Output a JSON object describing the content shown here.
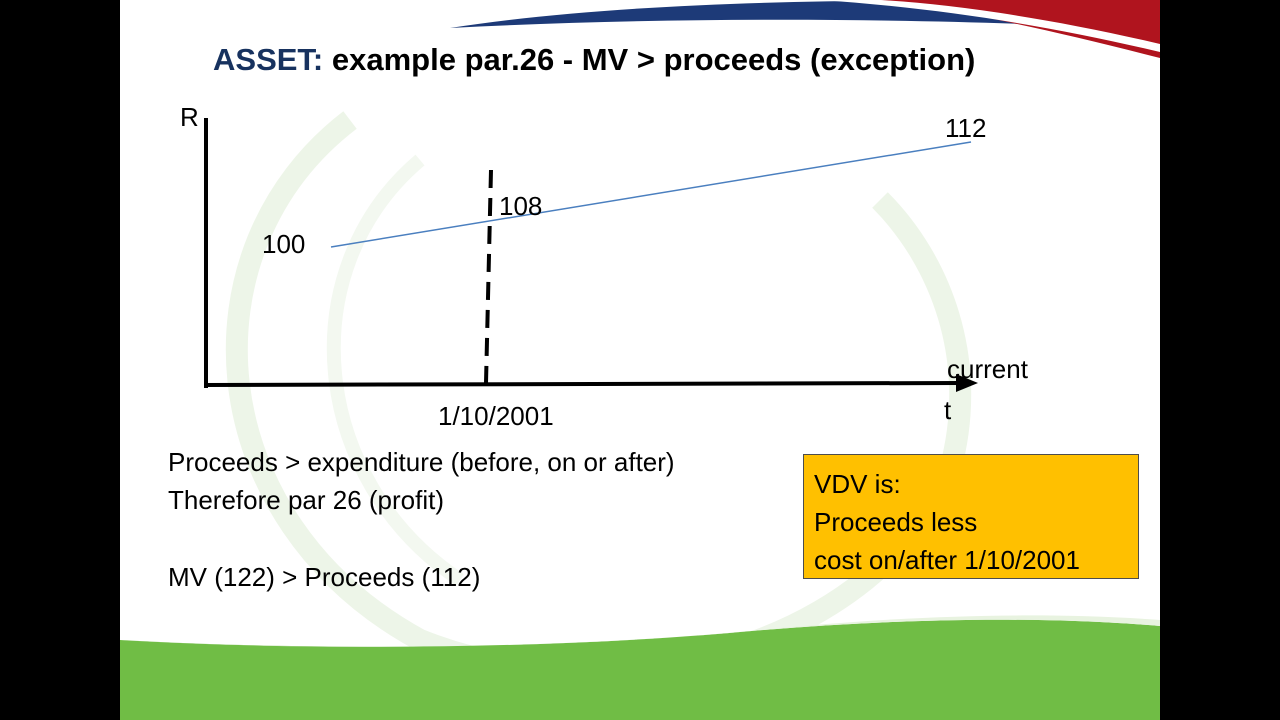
{
  "slide": {
    "title_prefix": "ASSET:",
    "title_rest": "example par.26 - MV > proceeds (exception)"
  },
  "colors": {
    "page_background": "#000000",
    "slide_background": "#ffffff",
    "title_prefix": "#17325f",
    "value_line": "#4a7fbf",
    "note_box": "#ffc000",
    "footer_green": "#70bd45",
    "header_navy": "#1d3a78",
    "header_red": "#b0141e"
  },
  "diagram": {
    "y_axis_label": "R",
    "x_axis_label_top": "current",
    "x_axis_label_bottom": "t",
    "date_marker": "1/10/2001",
    "value_start": "100",
    "value_at_date": "108",
    "value_end": "112"
  },
  "body_text": {
    "line1": "Proceeds > expenditure (before, on or after)",
    "line2": "Therefore par 26 (profit)",
    "line3": "MV (122) > Proceeds (112)"
  },
  "note_box": {
    "line1": "VDV is:",
    "line2": "Proceeds less",
    "line3": "cost on/after 1/10/2001"
  }
}
